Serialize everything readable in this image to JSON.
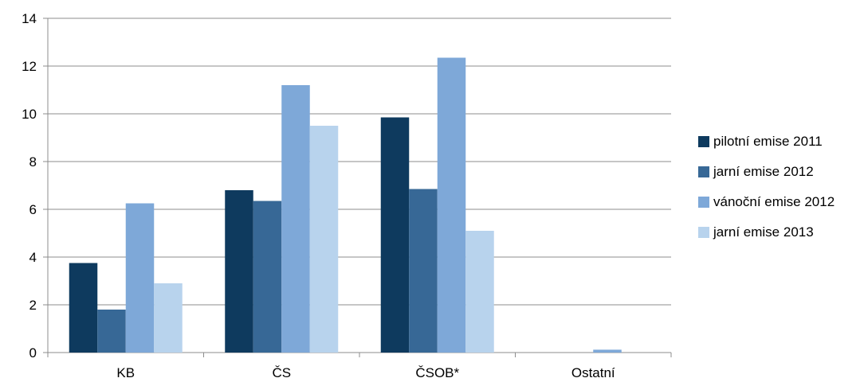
{
  "chart_data": {
    "type": "bar",
    "categories": [
      "KB",
      "ČS",
      "ČSOB*",
      "Ostatní"
    ],
    "series": [
      {
        "name": "pilotní emise 2011",
        "color": "#0e3a5e",
        "values": [
          3.75,
          6.8,
          9.85,
          0
        ]
      },
      {
        "name": "jarní emise 2012",
        "color": "#376896",
        "values": [
          1.8,
          6.35,
          6.85,
          0
        ]
      },
      {
        "name": "vánoční emise 2012",
        "color": "#7ea8d8",
        "values": [
          6.25,
          11.2,
          12.35,
          0.12
        ]
      },
      {
        "name": "jarní emise 2013",
        "color": "#b8d3ed",
        "values": [
          2.9,
          9.5,
          5.1,
          0
        ]
      }
    ],
    "ylim": [
      0,
      14
    ],
    "yticks": [
      "0",
      "2",
      "4",
      "6",
      "8",
      "10",
      "12",
      "14"
    ],
    "grid": true,
    "legend_position": "right"
  }
}
